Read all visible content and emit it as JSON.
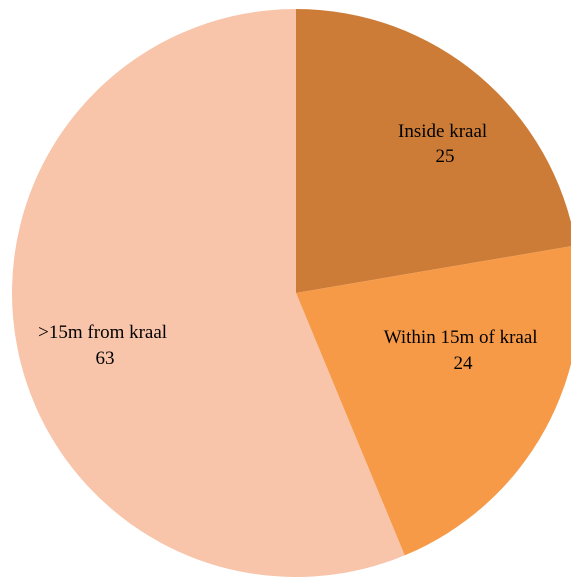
{
  "chart_data": {
    "type": "pie",
    "title": "",
    "start_angle_deg": 0,
    "direction": "clockwise",
    "legend": "none",
    "slices": [
      {
        "label": "Inside kraal",
        "value": 25,
        "color": "#CD7C38"
      },
      {
        "label": "Within 15m of kraal",
        "value": 24,
        "color": "#F69A48"
      },
      {
        "label": ">15m from kraal",
        "value": 63,
        "color": "#F8C4AA"
      }
    ]
  }
}
